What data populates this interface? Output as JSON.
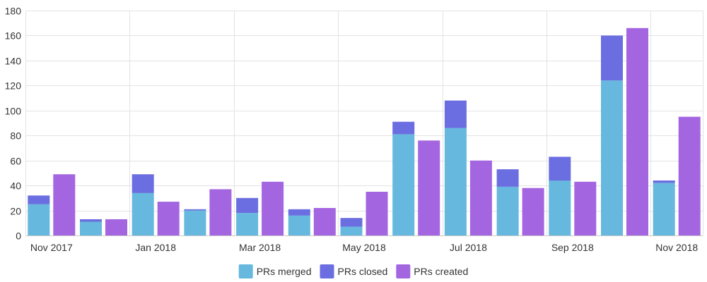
{
  "chart_data": {
    "type": "bar",
    "stacked": true,
    "categories": [
      "Nov 2017",
      "Dec 2017",
      "Jan 2018",
      "Feb 2018",
      "Mar 2018",
      "Apr 2018",
      "May 2018",
      "Jun 2018",
      "Jul 2018",
      "Aug 2018",
      "Sep 2018",
      "Oct 2018",
      "Nov 2018"
    ],
    "x_tick_labels": [
      "Nov 2017",
      "Jan 2018",
      "Mar 2018",
      "May 2018",
      "Jul 2018",
      "Sep 2018",
      "Nov 2018"
    ],
    "y_ticks": [
      0,
      20,
      40,
      60,
      80,
      100,
      120,
      140,
      160,
      180
    ],
    "ylim": [
      0,
      180
    ],
    "grid": true,
    "legend_position": "bottom-center",
    "title": "",
    "xlabel": "",
    "ylabel": "",
    "series": [
      {
        "name": "PRs merged",
        "stack": "a",
        "color": "#66b8de",
        "values": [
          25,
          11,
          34,
          20,
          18,
          16,
          7,
          81,
          86,
          39,
          44,
          124,
          42
        ]
      },
      {
        "name": "PRs closed",
        "stack": "a",
        "color": "#6b6ee0",
        "values": [
          7,
          2,
          15,
          1,
          12,
          5,
          7,
          10,
          22,
          14,
          19,
          36,
          2
        ]
      },
      {
        "name": "PRs created",
        "stack": "b",
        "color": "#a466e0",
        "values": [
          49,
          13,
          27,
          37,
          43,
          22,
          35,
          76,
          60,
          38,
          43,
          166,
          95
        ]
      }
    ]
  }
}
